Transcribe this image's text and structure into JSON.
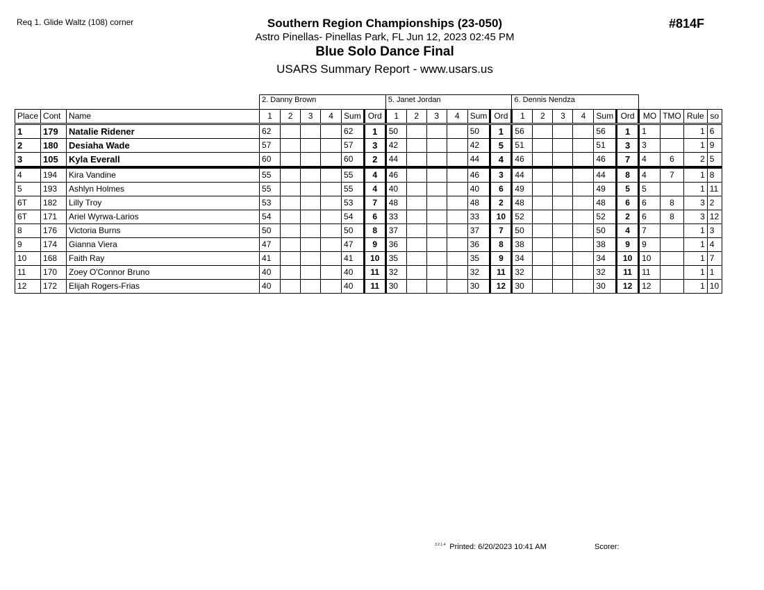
{
  "header": {
    "requirement": "Req  1.  Glide Waltz (108) corner",
    "title": "Southern Region Championships (23-050)",
    "subtitle": "Astro Pinellas- Pinellas Park, FL  Jun 12, 2023  02:45 PM",
    "event": "Blue Solo Dance Final",
    "report": "USARS Summary Report - www.usars.us",
    "event_number": "#814F"
  },
  "judges": [
    "2.  Danny  Brown",
    "5.  Janet Jordan",
    "6.  Dennis Nendza"
  ],
  "columns": {
    "place": "Place",
    "cont": "Cont",
    "name": "Name",
    "scores": [
      "1",
      "2",
      "3",
      "4",
      "Sum",
      "Ord"
    ],
    "mo": "MO",
    "tmo": "TMO",
    "rule": "Rule",
    "so": "so"
  },
  "rows": [
    {
      "place": "1",
      "cont": "179",
      "name": "Natalie Ridener",
      "j": [
        [
          "62",
          "62",
          "1"
        ],
        [
          "50",
          "50",
          "1"
        ],
        [
          "56",
          "56",
          "1"
        ]
      ],
      "mo": "1",
      "tmo": "",
      "rule": "1",
      "so": "6"
    },
    {
      "place": "2",
      "cont": "180",
      "name": "Desiaha Wade",
      "j": [
        [
          "57",
          "57",
          "3"
        ],
        [
          "42",
          "42",
          "5"
        ],
        [
          "51",
          "51",
          "3"
        ]
      ],
      "mo": "3",
      "tmo": "",
      "rule": "1",
      "so": "9"
    },
    {
      "place": "3",
      "cont": "105",
      "name": "Kyla Everall",
      "j": [
        [
          "60",
          "60",
          "2"
        ],
        [
          "44",
          "44",
          "4"
        ],
        [
          "46",
          "46",
          "7"
        ]
      ],
      "mo": "4",
      "tmo": "6",
      "rule": "2",
      "so": "5"
    },
    {
      "place": "4",
      "cont": "194",
      "name": "Kira Vandine",
      "j": [
        [
          "55",
          "55",
          "4"
        ],
        [
          "46",
          "46",
          "3"
        ],
        [
          "44",
          "44",
          "8"
        ]
      ],
      "mo": "4",
      "tmo": "7",
      "rule": "1",
      "so": "8"
    },
    {
      "place": "5",
      "cont": "193",
      "name": "Ashlyn Holmes",
      "j": [
        [
          "55",
          "55",
          "4"
        ],
        [
          "40",
          "40",
          "6"
        ],
        [
          "49",
          "49",
          "5"
        ]
      ],
      "mo": "5",
      "tmo": "",
      "rule": "1",
      "so": "11"
    },
    {
      "place": "6T",
      "cont": "182",
      "name": "Lilly Troy",
      "j": [
        [
          "53",
          "53",
          "7"
        ],
        [
          "48",
          "48",
          "2"
        ],
        [
          "48",
          "48",
          "6"
        ]
      ],
      "mo": "6",
      "tmo": "8",
      "rule": "3",
      "so": "2"
    },
    {
      "place": "6T",
      "cont": "171",
      "name": "Ariel Wyrwa-Larios",
      "j": [
        [
          "54",
          "54",
          "6"
        ],
        [
          "33",
          "33",
          "10"
        ],
        [
          "52",
          "52",
          "2"
        ]
      ],
      "mo": "6",
      "tmo": "8",
      "rule": "3",
      "so": "12"
    },
    {
      "place": "8",
      "cont": "176",
      "name": "Victoria Burns",
      "j": [
        [
          "50",
          "50",
          "8"
        ],
        [
          "37",
          "37",
          "7"
        ],
        [
          "50",
          "50",
          "4"
        ]
      ],
      "mo": "7",
      "tmo": "",
      "rule": "1",
      "so": "3"
    },
    {
      "place": "9",
      "cont": "174",
      "name": "Gianna Viera",
      "j": [
        [
          "47",
          "47",
          "9"
        ],
        [
          "36",
          "36",
          "8"
        ],
        [
          "38",
          "38",
          "9"
        ]
      ],
      "mo": "9",
      "tmo": "",
      "rule": "1",
      "so": "4"
    },
    {
      "place": "10",
      "cont": "168",
      "name": "Faith Ray",
      "j": [
        [
          "41",
          "41",
          "10"
        ],
        [
          "35",
          "35",
          "9"
        ],
        [
          "34",
          "34",
          "10"
        ]
      ],
      "mo": "10",
      "tmo": "",
      "rule": "1",
      "so": "7"
    },
    {
      "place": "11",
      "cont": "170",
      "name": "Zoey O'Connor Bruno",
      "j": [
        [
          "40",
          "40",
          "11"
        ],
        [
          "32",
          "32",
          "11"
        ],
        [
          "32",
          "32",
          "11"
        ]
      ],
      "mo": "11",
      "tmo": "",
      "rule": "1",
      "so": "1"
    },
    {
      "place": "12",
      "cont": "172",
      "name": "Elijah Rogers-Frias",
      "j": [
        [
          "40",
          "40",
          "11"
        ],
        [
          "30",
          "30",
          "12"
        ],
        [
          "30",
          "30",
          "12"
        ]
      ],
      "mo": "12",
      "tmo": "",
      "rule": "1",
      "so": "10"
    }
  ],
  "footer": {
    "version": "3.2.1.4",
    "printed": "Printed:  6/20/2023  10:41 AM",
    "scorer": "Scorer:"
  }
}
